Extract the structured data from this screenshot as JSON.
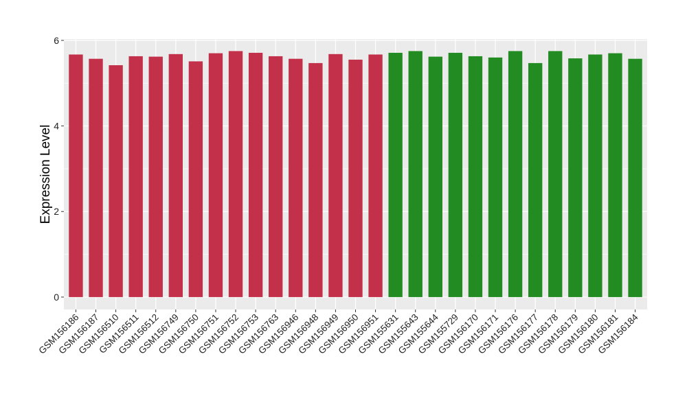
{
  "chart_data": {
    "type": "bar",
    "title": "",
    "xlabel": "",
    "ylabel": "Expression Level",
    "ylim": [
      -0.29,
      6.03
    ],
    "yticks": [
      0,
      2,
      4,
      6
    ],
    "grid": true,
    "legend": "none",
    "colors": {
      "group1": "#C3304A",
      "group2": "#228B22",
      "panel": "#EBEBEB",
      "grid": "#FFFFFF"
    },
    "categories": [
      "GSM156186",
      "GSM156187",
      "GSM156510",
      "GSM156511",
      "GSM156512",
      "GSM156749",
      "GSM156750",
      "GSM156751",
      "GSM156752",
      "GSM156753",
      "GSM156763",
      "GSM156946",
      "GSM156948",
      "GSM156949",
      "GSM156950",
      "GSM156951",
      "GSM155631",
      "GSM155643",
      "GSM155644",
      "GSM155729",
      "GSM156170",
      "GSM156171",
      "GSM156176",
      "GSM156177",
      "GSM156178",
      "GSM156179",
      "GSM156180",
      "GSM156181",
      "GSM156184"
    ],
    "values": [
      5.67,
      5.57,
      5.42,
      5.63,
      5.62,
      5.68,
      5.51,
      5.7,
      5.75,
      5.71,
      5.63,
      5.57,
      5.47,
      5.68,
      5.55,
      5.67,
      5.71,
      5.75,
      5.62,
      5.71,
      5.63,
      5.6,
      5.75,
      5.47,
      5.75,
      5.58,
      5.67,
      5.7,
      5.57
    ],
    "groups": [
      1,
      1,
      1,
      1,
      1,
      1,
      1,
      1,
      1,
      1,
      1,
      1,
      1,
      1,
      1,
      1,
      2,
      2,
      2,
      2,
      2,
      2,
      2,
      2,
      2,
      2,
      2,
      2,
      2
    ]
  }
}
